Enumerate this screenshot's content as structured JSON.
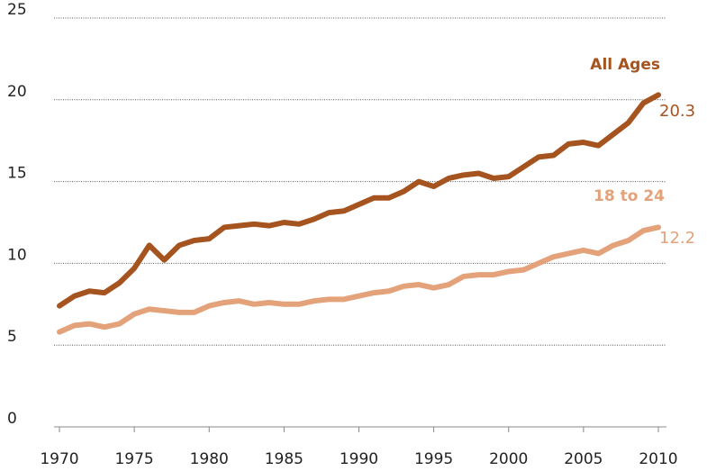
{
  "chart_data": {
    "type": "line",
    "x": [
      1970,
      1971,
      1972,
      1973,
      1974,
      1975,
      1976,
      1977,
      1978,
      1979,
      1980,
      1981,
      1982,
      1983,
      1984,
      1985,
      1986,
      1987,
      1988,
      1989,
      1990,
      1991,
      1992,
      1993,
      1994,
      1995,
      1996,
      1997,
      1998,
      1999,
      2000,
      2001,
      2002,
      2003,
      2004,
      2005,
      2006,
      2007,
      2008,
      2009,
      2010
    ],
    "series": [
      {
        "name": "All Ages",
        "color": "#a5541f",
        "values": [
          7.4,
          8.0,
          8.3,
          8.2,
          8.8,
          9.7,
          11.1,
          10.2,
          11.1,
          11.4,
          11.5,
          12.2,
          12.3,
          12.4,
          12.3,
          12.5,
          12.4,
          12.7,
          13.1,
          13.2,
          13.6,
          14.0,
          14.0,
          14.4,
          15.0,
          14.7,
          15.2,
          15.4,
          15.5,
          15.2,
          15.3,
          15.9,
          16.5,
          16.6,
          17.3,
          17.4,
          17.2,
          17.9,
          18.6,
          19.8,
          20.3
        ]
      },
      {
        "name": "18 to 24",
        "color": "#e3a27a",
        "values": [
          5.8,
          6.2,
          6.3,
          6.1,
          6.3,
          6.9,
          7.2,
          7.1,
          7.0,
          7.0,
          7.4,
          7.6,
          7.7,
          7.5,
          7.6,
          7.5,
          7.5,
          7.7,
          7.8,
          7.8,
          8.0,
          8.2,
          8.3,
          8.6,
          8.7,
          8.5,
          8.7,
          9.2,
          9.3,
          9.3,
          9.5,
          9.6,
          10.0,
          10.4,
          10.6,
          10.8,
          10.6,
          11.1,
          11.4,
          12.0,
          12.2
        ]
      }
    ],
    "xlim": [
      1970,
      2010
    ],
    "xticks": [
      1970,
      1975,
      1980,
      1985,
      1990,
      1995,
      2000,
      2005,
      2010
    ],
    "ylim": [
      0,
      25
    ],
    "yticks": [
      0,
      5,
      10,
      15,
      20,
      25
    ],
    "grid": true
  }
}
